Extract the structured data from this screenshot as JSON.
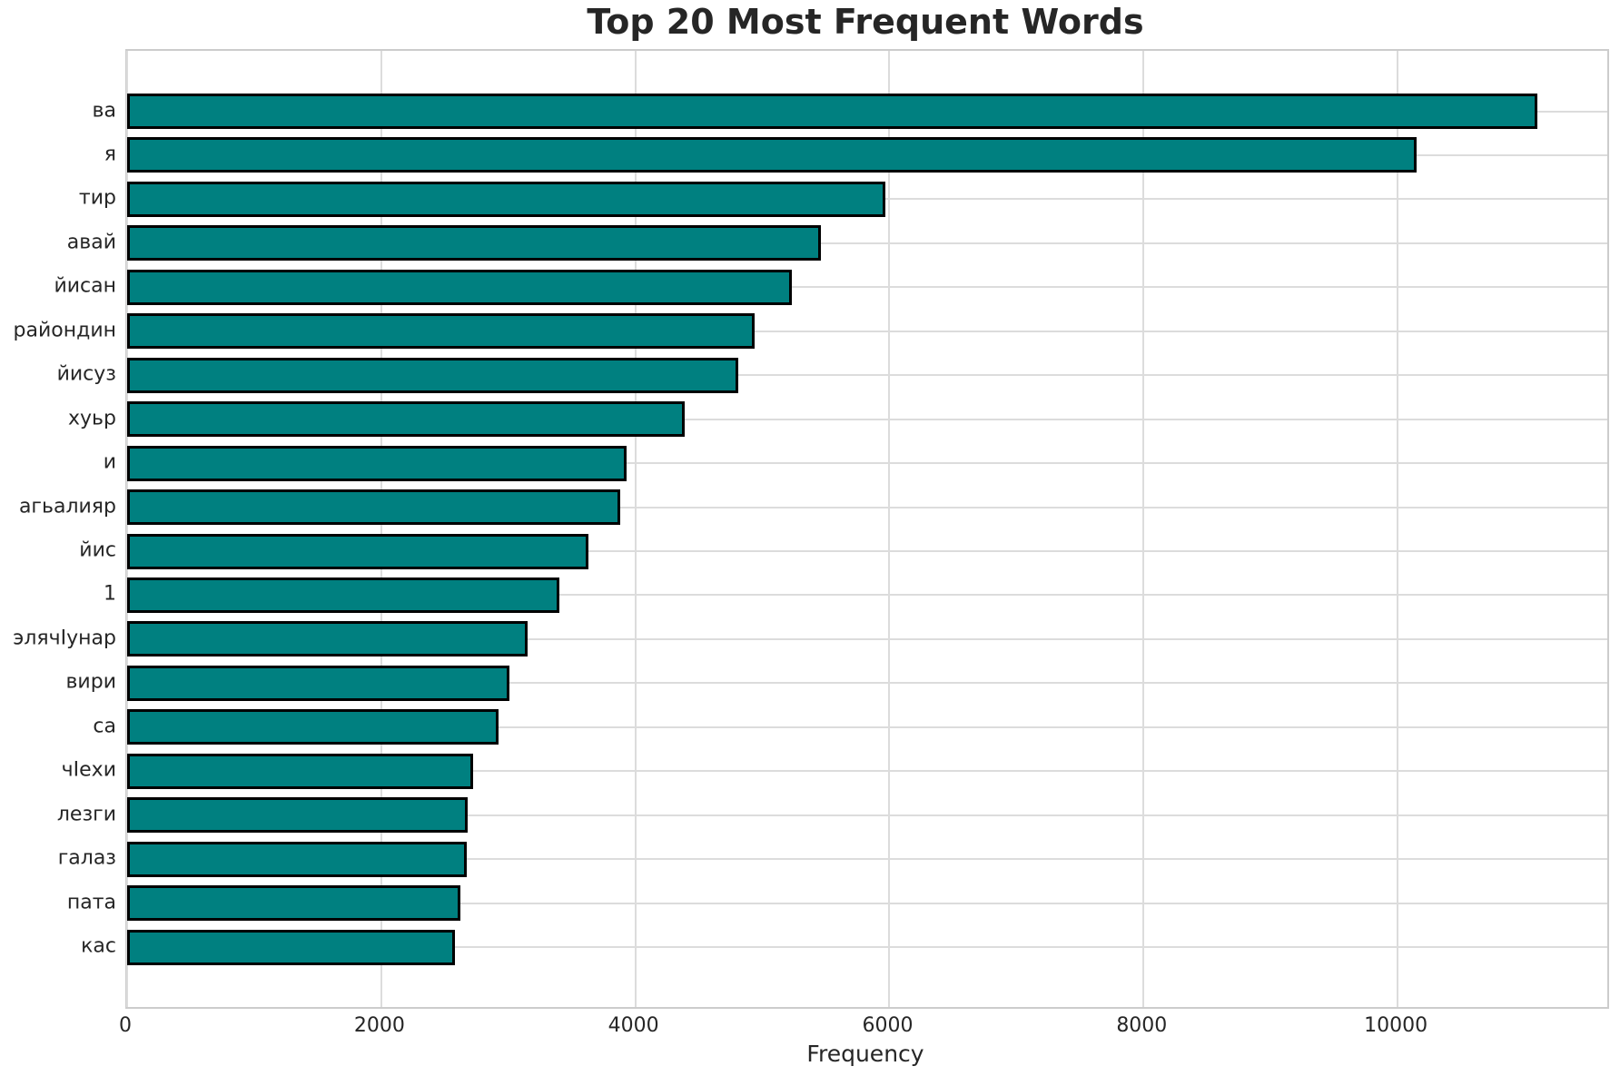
{
  "chart_data": {
    "type": "bar",
    "orientation": "horizontal",
    "title": "Top 20 Most Frequent Words",
    "xlabel": "Frequency",
    "ylabel": "",
    "categories": [
      "ва",
      "я",
      "тир",
      "авай",
      "йисан",
      "райондин",
      "йисуз",
      "хуьр",
      "и",
      "агьалияр",
      "йис",
      "1",
      "элячӀунар",
      "вири",
      "са",
      "чӀехи",
      "лезги",
      "галаз",
      "пата",
      "кас"
    ],
    "values": [
      11100,
      10150,
      5970,
      5460,
      5230,
      4940,
      4810,
      4390,
      3930,
      3880,
      3630,
      3400,
      3150,
      3010,
      2920,
      2720,
      2680,
      2670,
      2620,
      2580
    ],
    "xticks": [
      0,
      2000,
      4000,
      6000,
      8000,
      10000
    ],
    "xtick_labels": [
      "0",
      "2000",
      "4000",
      "6000",
      "8000",
      "10000"
    ],
    "xlim": [
      0,
      11650
    ],
    "grid": true,
    "legend": null,
    "bar_color": "#008080",
    "bar_edge_color": "#000000"
  },
  "colors": {
    "background": "#ffffff",
    "gridline": "#dcdcdc",
    "spine": "#cccccc",
    "text": "#262626"
  }
}
